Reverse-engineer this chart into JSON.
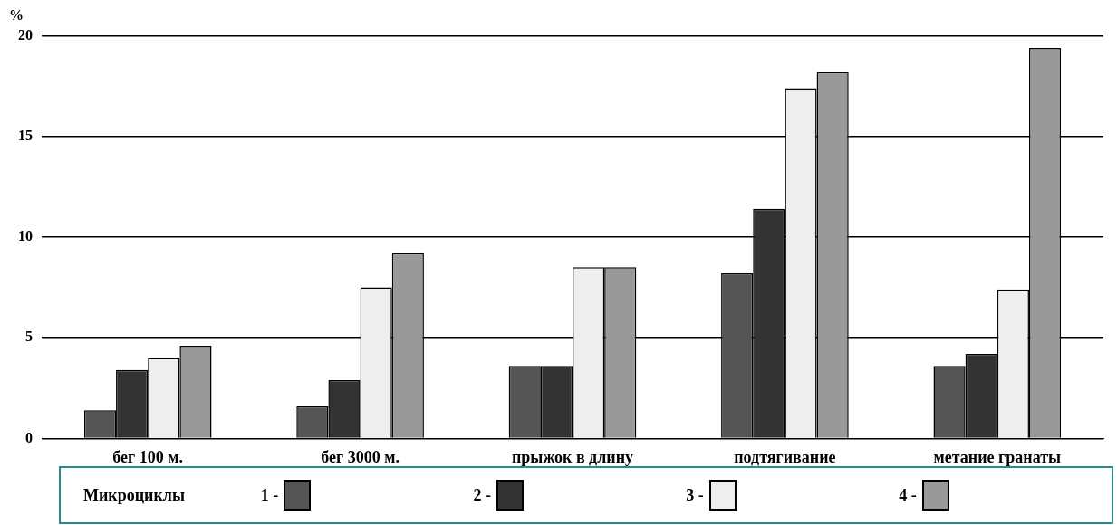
{
  "chart_data": {
    "type": "bar",
    "ylabel": "%",
    "legend_title": "Микроциклы",
    "categories": [
      "бег 100 м.",
      "бег 3000 м.",
      "прыжок в длину",
      "подтягивание",
      "метание гранаты"
    ],
    "series": [
      {
        "name": "1 -",
        "color": "#555555",
        "values": [
          1.4,
          1.6,
          3.6,
          8.2,
          3.6
        ]
      },
      {
        "name": "2 -",
        "color": "#333333",
        "values": [
          3.4,
          2.9,
          3.6,
          11.4,
          4.2
        ]
      },
      {
        "name": "3 -",
        "color": "#eeeeee",
        "values": [
          4.0,
          7.5,
          8.5,
          17.4,
          7.4
        ]
      },
      {
        "name": "4 -",
        "color": "#999999",
        "values": [
          4.6,
          9.2,
          8.5,
          18.2,
          19.4
        ]
      }
    ],
    "ylim": [
      0,
      20
    ],
    "yticks": [
      0,
      5,
      10,
      15,
      20
    ],
    "grid": "y",
    "legend": "bottom"
  }
}
